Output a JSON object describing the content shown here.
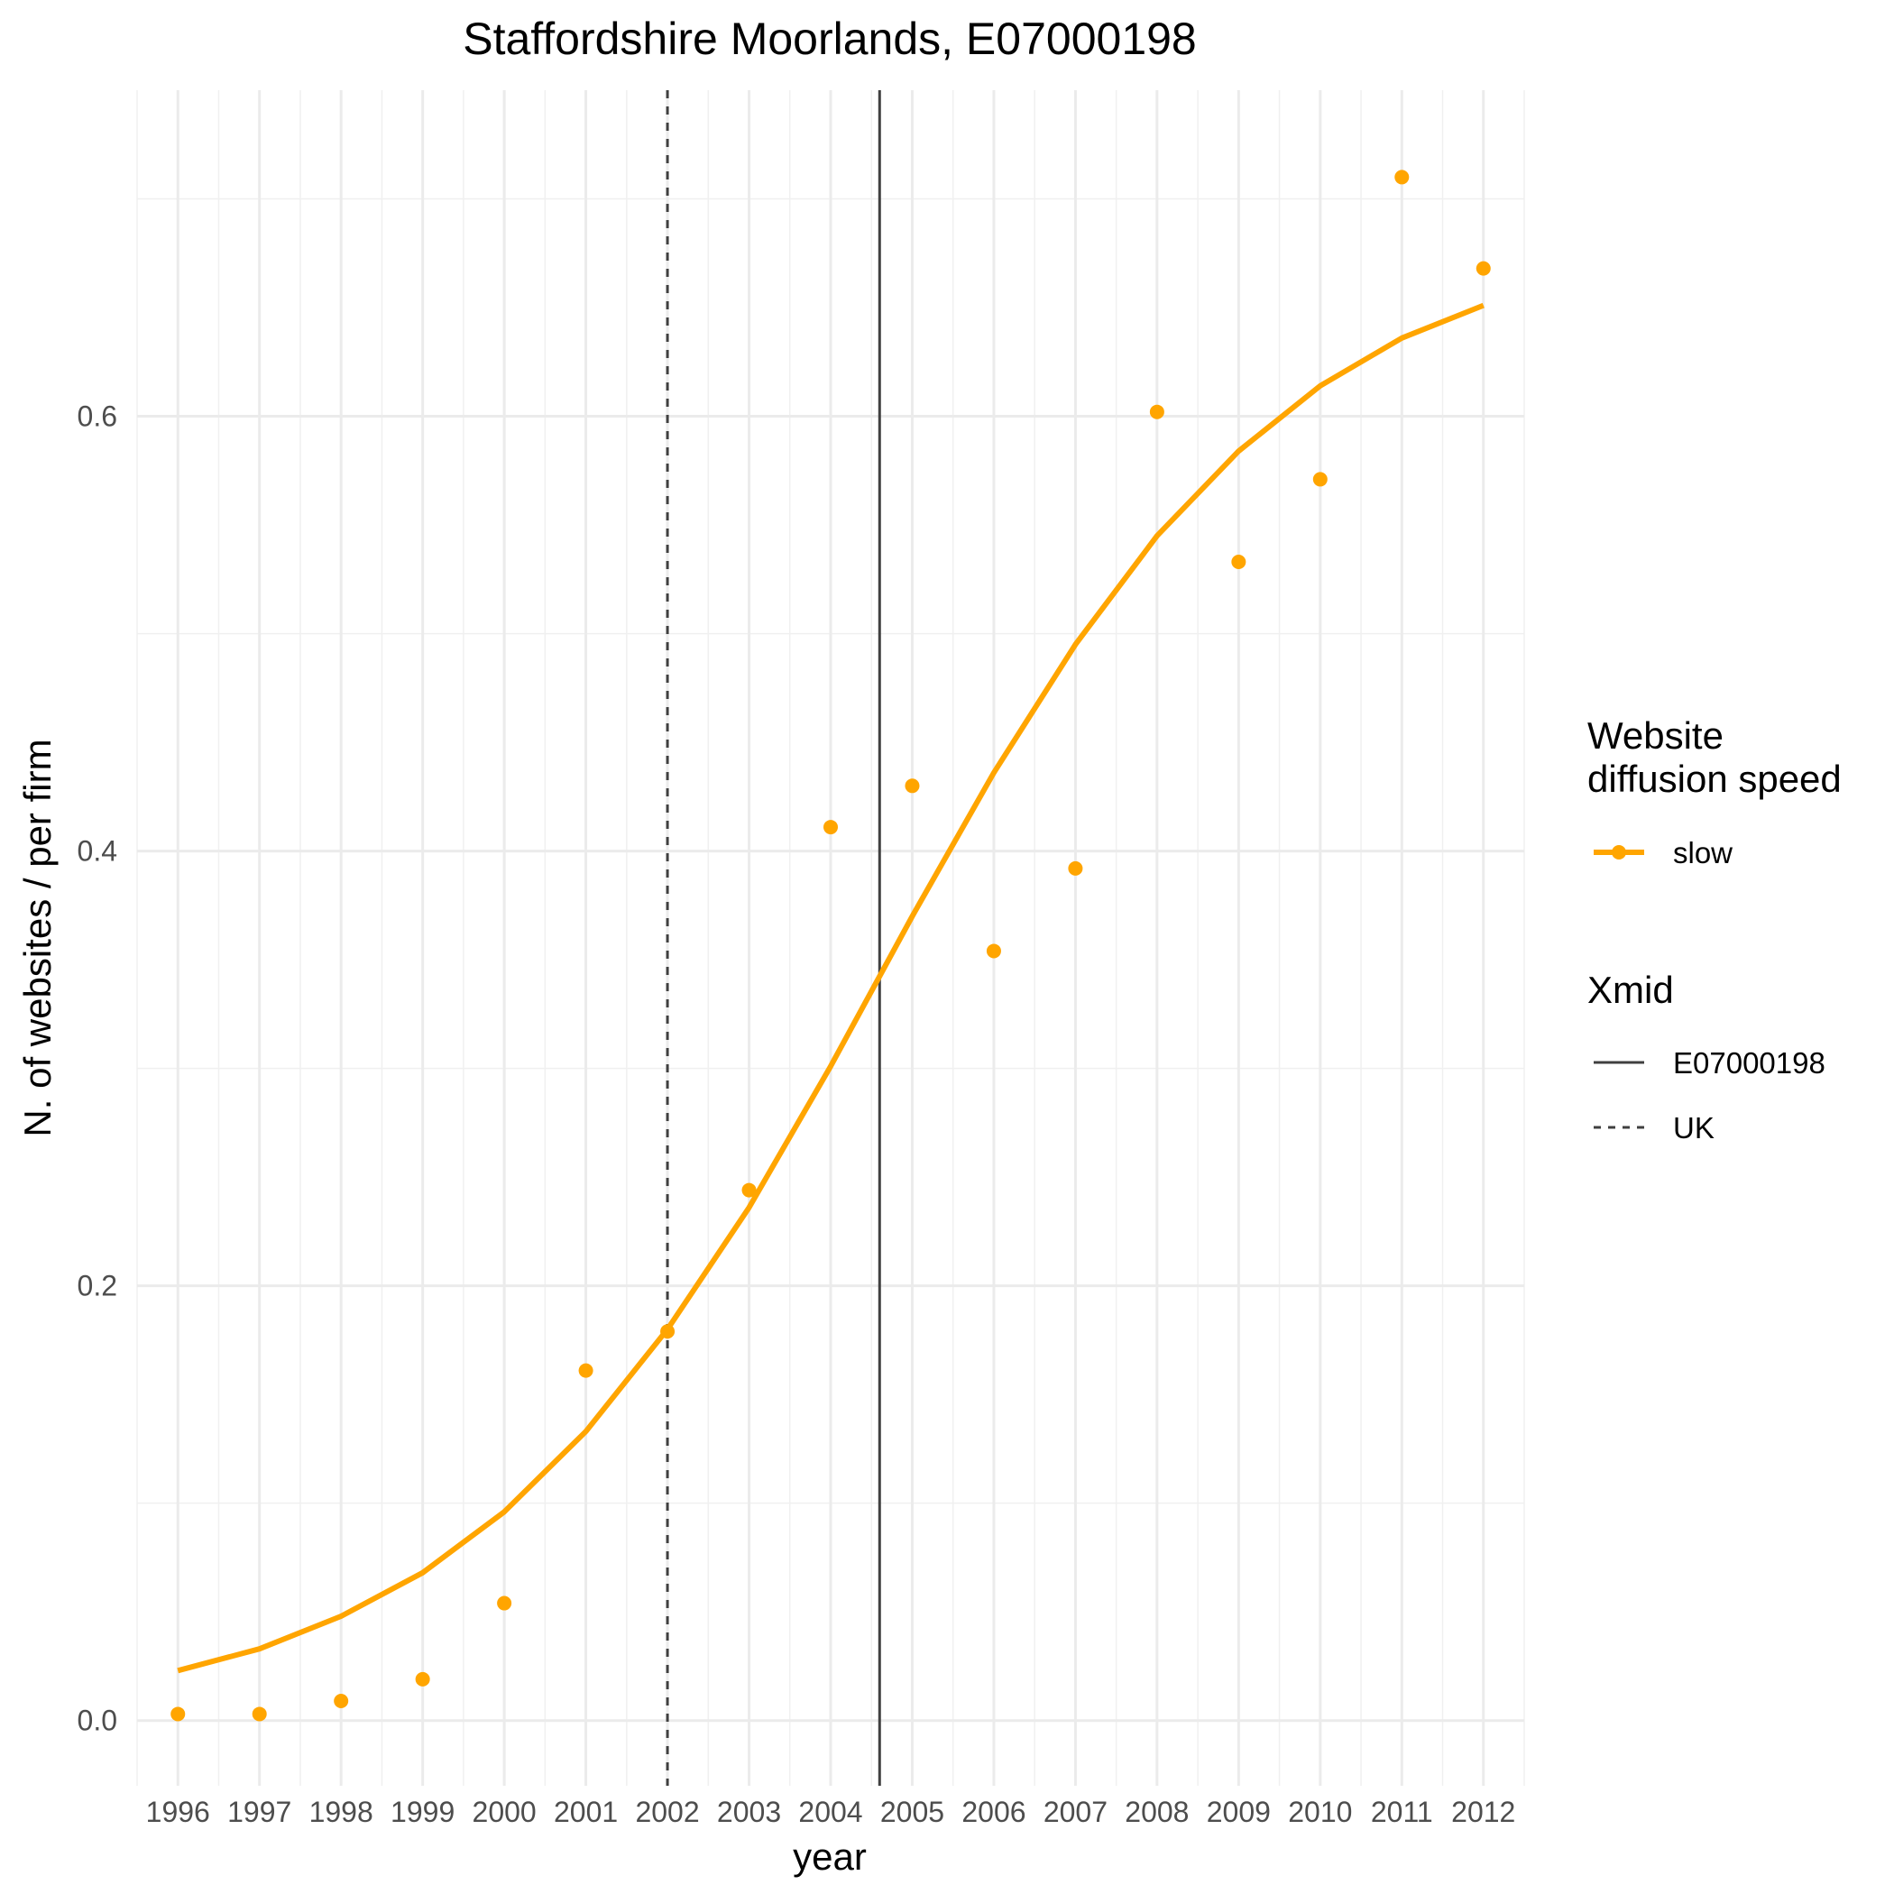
{
  "chart_data": {
    "type": "line",
    "title": "Staffordshire Moorlands, E07000198",
    "xlabel": "year",
    "ylabel": "N. of websites / per firm",
    "x": [
      1996,
      1997,
      1998,
      1999,
      2000,
      2001,
      2002,
      2003,
      2004,
      2005,
      2006,
      2007,
      2008,
      2009,
      2010,
      2011,
      2012
    ],
    "x_tick_labels": [
      "1996",
      "1997",
      "1998",
      "1999",
      "2000",
      "2001",
      "2002",
      "2003",
      "2004",
      "2005",
      "2006",
      "2007",
      "2008",
      "2009",
      "2010",
      "2011",
      "2012"
    ],
    "xlim": [
      1995.5,
      2012.5
    ],
    "ylim": [
      -0.03,
      0.75
    ],
    "y_ticks": [
      0.0,
      0.2,
      0.4,
      0.6
    ],
    "y_tick_labels": [
      "0.0",
      "0.2",
      "0.4",
      "0.6"
    ],
    "grid": true,
    "series": [
      {
        "name": "slow",
        "kind": "fitted-line",
        "color": "#FFA500",
        "values": [
          0.023,
          0.033,
          0.048,
          0.068,
          0.096,
          0.133,
          0.18,
          0.236,
          0.301,
          0.37,
          0.436,
          0.495,
          0.545,
          0.584,
          0.614,
          0.636,
          0.651
        ]
      },
      {
        "name": "slow",
        "kind": "observed-points",
        "color": "#FFA500",
        "values": [
          0.003,
          0.003,
          0.009,
          0.019,
          0.054,
          0.161,
          0.179,
          0.244,
          0.411,
          0.43,
          0.354,
          0.392,
          0.602,
          0.533,
          0.571,
          0.71,
          0.668
        ]
      }
    ],
    "vlines": [
      {
        "name": "E07000198",
        "x": 2004.6,
        "style": "solid",
        "color": "#404040"
      },
      {
        "name": "UK",
        "x": 2002.0,
        "style": "dashed",
        "color": "#404040"
      }
    ],
    "legend": {
      "placement": "right",
      "speed_title_line1": "Website",
      "speed_title_line2": "diffusion speed",
      "speed_entry": "slow",
      "xmid_title": "Xmid",
      "xmid_entry_1": "E07000198",
      "xmid_entry_2": "UK"
    }
  }
}
